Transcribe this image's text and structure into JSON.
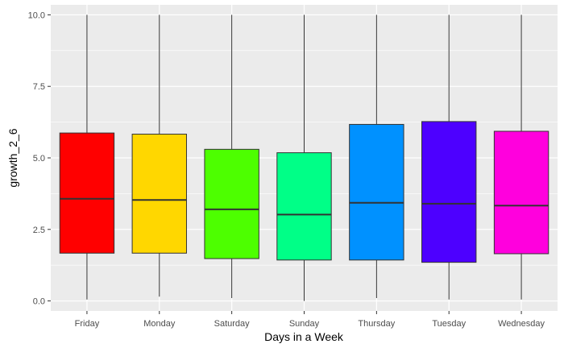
{
  "chart_data": {
    "type": "boxplot",
    "title": "",
    "xlabel": "Days in a Week",
    "ylabel": "growth_2_6",
    "ylim": [
      -0.35,
      10.35
    ],
    "y_ticks": [
      0.0,
      2.5,
      5.0,
      7.5,
      10.0
    ],
    "y_tick_labels": [
      "0.0",
      "2.5",
      "5.0",
      "7.5",
      "10.0"
    ],
    "grid": true,
    "legend": "none",
    "categories": [
      "Friday",
      "Monday",
      "Saturday",
      "Sunday",
      "Thursday",
      "Tuesday",
      "Wednesday"
    ],
    "series": [
      {
        "min": 0.05,
        "q1": 1.67,
        "median": 3.57,
        "q3": 5.87,
        "max": 10.0,
        "color": "#ff0000"
      },
      {
        "min": 0.15,
        "q1": 1.67,
        "median": 3.53,
        "q3": 5.83,
        "max": 10.0,
        "color": "#ffd700"
      },
      {
        "min": 0.1,
        "q1": 1.48,
        "median": 3.2,
        "q3": 5.3,
        "max": 10.0,
        "color": "#4dff00"
      },
      {
        "min": 0.0,
        "q1": 1.43,
        "median": 3.02,
        "q3": 5.18,
        "max": 10.0,
        "color": "#00ff87"
      },
      {
        "min": 0.1,
        "q1": 1.43,
        "median": 3.43,
        "q3": 6.17,
        "max": 10.0,
        "color": "#0091ff"
      },
      {
        "min": 0.05,
        "q1": 1.35,
        "median": 3.4,
        "q3": 6.27,
        "max": 10.0,
        "color": "#4d00ff"
      },
      {
        "min": 0.05,
        "q1": 1.65,
        "median": 3.33,
        "q3": 5.93,
        "max": 10.0,
        "color": "#ff00dd"
      }
    ],
    "panel_color": "#ebebeb",
    "grid_color": "#ffffff"
  }
}
